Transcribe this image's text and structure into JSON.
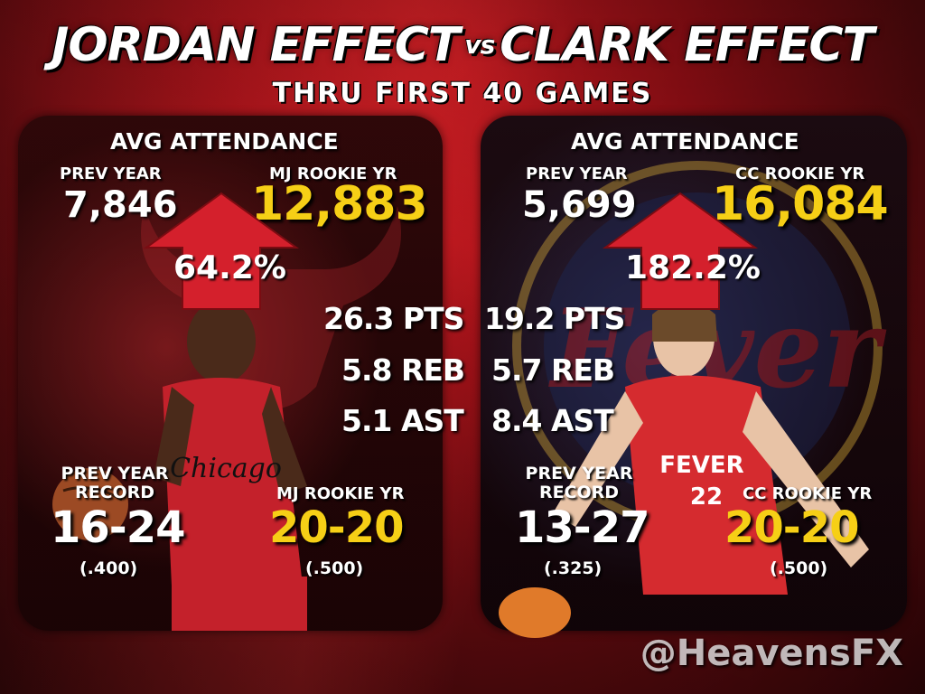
{
  "header": {
    "left_name": "JORDAN EFFECT",
    "vs": "vs",
    "right_name": "CLARK EFFECT",
    "subtitle": "THRU FIRST 40 GAMES"
  },
  "jordan": {
    "heading": "AVG ATTENDANCE",
    "prev_label": "PREV YEAR",
    "prev_value": "7,846",
    "rookie_label": "MJ ROOKIE YR",
    "rookie_value": "12,883",
    "increase": "64.2%",
    "stats": {
      "pts": "26.3 PTS",
      "reb": "5.8 REB",
      "ast": "5.1 AST"
    },
    "prev_record_label_1": "PREV YEAR",
    "prev_record_label_2": "RECORD",
    "prev_record": "16-24",
    "prev_pct": "(.400)",
    "rookie_record_label": "MJ ROOKIE YR",
    "rookie_record": "20-20",
    "rookie_pct": "(.500)"
  },
  "clark": {
    "heading": "AVG ATTENDANCE",
    "prev_label": "PREV YEAR",
    "prev_value": "5,699",
    "rookie_label": "CC ROOKIE YR",
    "rookie_value": "16,084",
    "increase": "182.2%",
    "stats": {
      "pts": "19.2 PTS",
      "reb": "5.7 REB",
      "ast": "8.4 AST"
    },
    "prev_record_label_1": "PREV YEAR",
    "prev_record_label_2": "RECORD",
    "prev_record": "13-27",
    "prev_pct": "(.325)",
    "rookie_record_label": "CC ROOKIE YR",
    "rookie_record": "20-20",
    "rookie_pct": "(.500)"
  },
  "jersey_text": {
    "left": "Chicago",
    "right": "FEVER",
    "right_number": "22"
  },
  "watermark": "@HeavensFX",
  "colors": {
    "accent_yellow": "#f6cf16",
    "arrow_red": "#d4202c",
    "bg_red": "#9c0f16"
  }
}
